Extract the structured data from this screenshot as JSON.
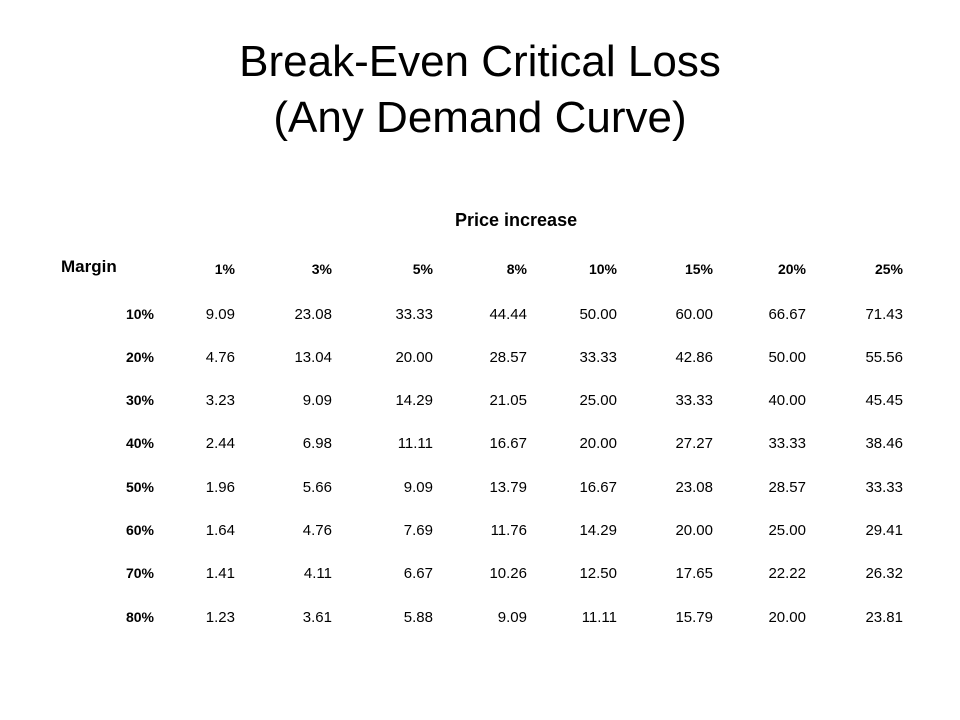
{
  "title": {
    "line1": "Break-Even Critical Loss",
    "line2": "(Any Demand Curve)"
  },
  "table": {
    "caption": "Price increase",
    "row_header_label": "Margin",
    "columns": [
      "1%",
      "3%",
      "5%",
      "8%",
      "10%",
      "15%",
      "20%",
      "25%"
    ],
    "rows": [
      {
        "margin": "10%",
        "values": [
          "9.09",
          "23.08",
          "33.33",
          "44.44",
          "50.00",
          "60.00",
          "66.67",
          "71.43"
        ]
      },
      {
        "margin": "20%",
        "values": [
          "4.76",
          "13.04",
          "20.00",
          "28.57",
          "33.33",
          "42.86",
          "50.00",
          "55.56"
        ]
      },
      {
        "margin": "30%",
        "values": [
          "3.23",
          "9.09",
          "14.29",
          "21.05",
          "25.00",
          "33.33",
          "40.00",
          "45.45"
        ]
      },
      {
        "margin": "40%",
        "values": [
          "2.44",
          "6.98",
          "11.11",
          "16.67",
          "20.00",
          "27.27",
          "33.33",
          "38.46"
        ]
      },
      {
        "margin": "50%",
        "values": [
          "1.96",
          "5.66",
          "9.09",
          "13.79",
          "16.67",
          "23.08",
          "28.57",
          "33.33"
        ]
      },
      {
        "margin": "60%",
        "values": [
          "1.64",
          "4.76",
          "7.69",
          "11.76",
          "14.29",
          "20.00",
          "25.00",
          "29.41"
        ]
      },
      {
        "margin": "70%",
        "values": [
          "1.41",
          "4.11",
          "6.67",
          "10.26",
          "12.50",
          "17.65",
          "22.22",
          "26.32"
        ]
      },
      {
        "margin": "80%",
        "values": [
          "1.23",
          "3.61",
          "5.88",
          "9.09",
          "11.11",
          "15.79",
          "20.00",
          "23.81"
        ]
      }
    ]
  }
}
